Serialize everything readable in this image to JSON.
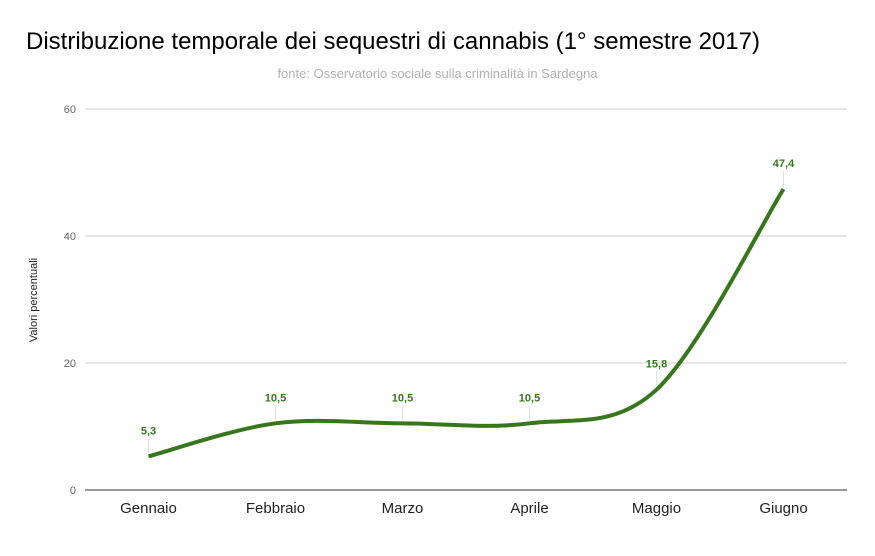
{
  "chart_data": {
    "type": "line",
    "title": "Distribuzione temporale dei sequestri di cannabis (1° semestre  2017)",
    "subtitle": "fonte: Osservatorio sociale sulla criminalità in Sardegna",
    "xlabel": "",
    "ylabel": "Valori percentuali",
    "categories": [
      "Gennaio",
      "Febbraio",
      "Marzo",
      "Aprile",
      "Maggio",
      "Giugno"
    ],
    "values": [
      5.3,
      10.5,
      10.5,
      10.5,
      15.8,
      47.4
    ],
    "data_labels": [
      "5,3",
      "10,5",
      "10,5",
      "10,5",
      "15,8",
      "47,4"
    ],
    "ylim": [
      0,
      60
    ],
    "yticks": [
      0,
      20,
      40,
      60
    ],
    "grid": true,
    "smooth": true,
    "legend": "none",
    "colors": {
      "line": "#38761d",
      "label": "#38761d",
      "grid": "#cccccc",
      "axis": "#333333"
    }
  }
}
